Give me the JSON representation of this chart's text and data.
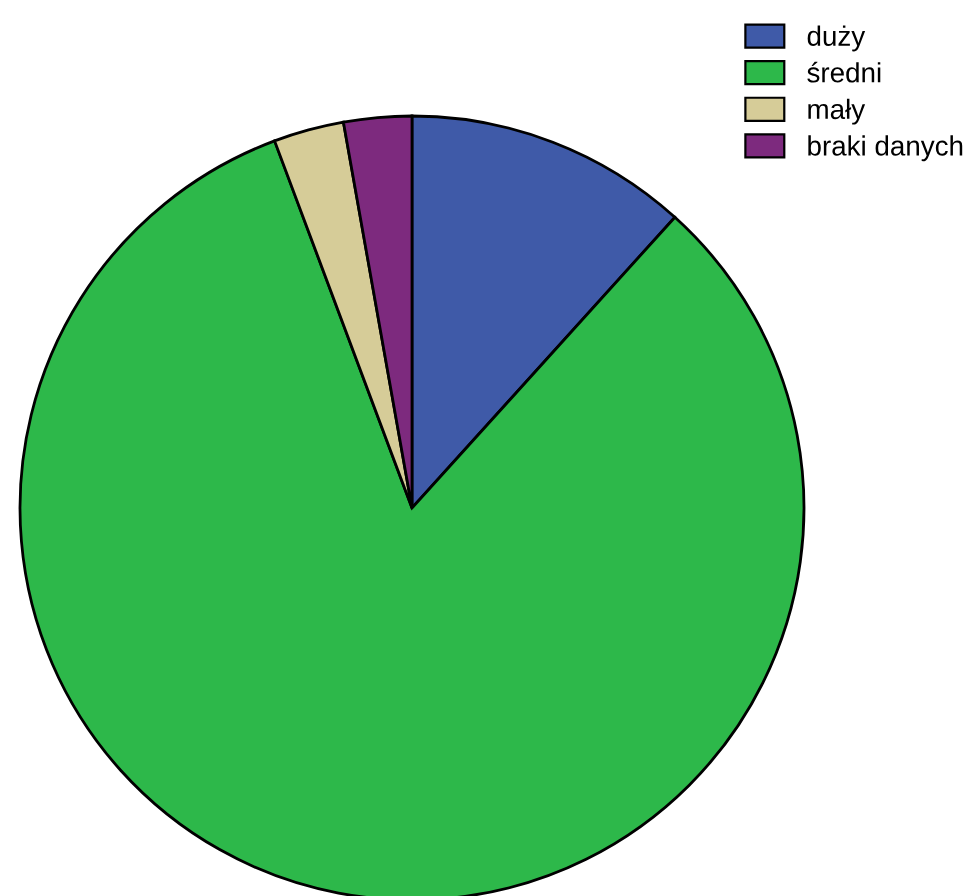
{
  "chart_data": {
    "type": "pie",
    "categories": [
      "duży",
      "średni",
      "mały",
      "braki danych"
    ],
    "values": [
      11.7,
      82.6,
      2.9,
      2.8
    ],
    "colors": [
      "#3f5aa8",
      "#2db84a",
      "#d6cc98",
      "#7d2a7e"
    ],
    "legend": "top right"
  }
}
